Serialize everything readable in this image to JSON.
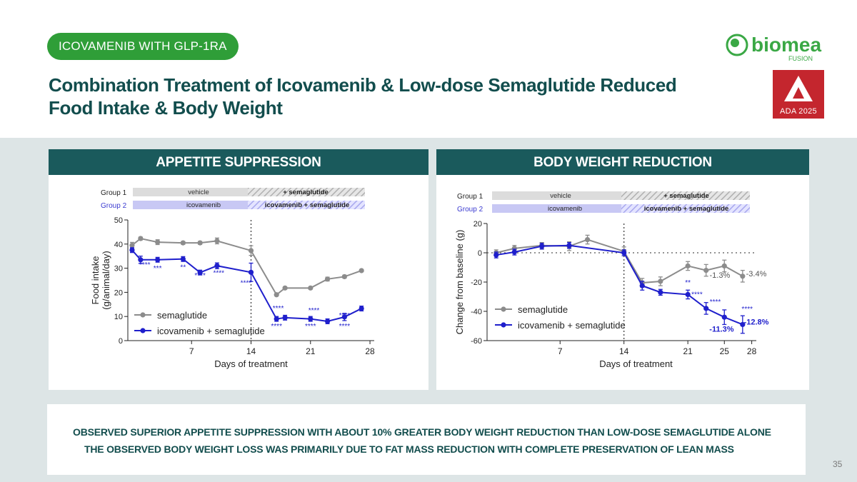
{
  "header": {
    "tag": "ICOVAMENIB WITH GLP-1RA",
    "title_line1": "Combination Treatment of Icovamenib & Low-dose Semaglutide Reduced",
    "title_line2": "Food Intake & Body Weight",
    "logo_word": "biomea",
    "logo_sub": "FUSION",
    "ada_label": "ADA 2025"
  },
  "colors": {
    "gray": "#8c8c8c",
    "blue": "#1f1fcc",
    "teal": "#1a5a5c",
    "green": "#2f9e38"
  },
  "groups": {
    "group1": "Group 1",
    "group2": "Group 2",
    "vehicle": "vehicle",
    "plus_sema": "+ semaglutide",
    "icovamenib": "icovamenib",
    "combo": "icovamenib + semaglutide"
  },
  "left_panel": {
    "heading": "APPETITE SUPPRESSION"
  },
  "right_panel": {
    "heading": "BODY WEIGHT REDUCTION"
  },
  "chart_data": [
    {
      "type": "line",
      "title": "APPETITE SUPPRESSION",
      "xlabel": "Days of treatment",
      "ylabel": "Food intake (g/animal/day)",
      "xlim": [
        -0.5,
        28.5
      ],
      "ylim": [
        0,
        50
      ],
      "xticks": [
        7,
        14,
        21,
        28
      ],
      "yticks": [
        0,
        10,
        20,
        30,
        40,
        50
      ],
      "vline": 14,
      "series": [
        {
          "name": "semaglutide",
          "color": "#8c8c8c",
          "x": [
            0,
            1,
            3,
            6,
            8,
            10,
            14,
            17,
            18,
            21,
            23,
            25,
            27
          ],
          "y": [
            39.5,
            42.3,
            40.8,
            40.5,
            40.5,
            41.3,
            37.3,
            19,
            21.8,
            21.8,
            25.5,
            26.5,
            29
          ],
          "err": [
            1.2,
            0.6,
            1,
            0.6,
            0.6,
            1.2,
            2,
            0.4,
            0.4,
            0.4,
            0.8,
            0.6,
            0.4
          ]
        },
        {
          "name": "icovamenib + semaglutide",
          "color": "#1f1fcc",
          "x": [
            0,
            1,
            3,
            6,
            8,
            10,
            14,
            17,
            18,
            21,
            23,
            25,
            27
          ],
          "y": [
            37.5,
            33.5,
            33.5,
            33.8,
            28.2,
            31,
            28.3,
            9,
            9.5,
            9,
            8,
            9.8,
            13.3
          ],
          "err": [
            1,
            1.5,
            1,
            1,
            1,
            1.2,
            3.8,
            1,
            1,
            1,
            1,
            1.5,
            1
          ]
        }
      ],
      "annotations": [
        {
          "text": "****",
          "x": 1.5,
          "y": 30.5
        },
        {
          "text": "***",
          "x": 3,
          "y": 29
        },
        {
          "text": "**",
          "x": 6,
          "y": 29.5
        },
        {
          "text": "****",
          "x": 8,
          "y": 26
        },
        {
          "text": "****",
          "x": 10.2,
          "y": 27
        },
        {
          "text": "****",
          "x": 13.4,
          "y": 23
        },
        {
          "text": "****",
          "x": 17.2,
          "y": 12.5
        },
        {
          "text": "****",
          "x": 17,
          "y": 5
        },
        {
          "text": "****",
          "x": 21.4,
          "y": 11.5
        },
        {
          "text": "****",
          "x": 21,
          "y": 5
        },
        {
          "text": "****",
          "x": 25,
          "y": 9.5
        },
        {
          "text": "****",
          "x": 25,
          "y": 5
        }
      ],
      "legend": [
        "semaglutide",
        "icovamenib + semaglutide"
      ]
    },
    {
      "type": "line",
      "title": "BODY WEIGHT REDUCTION",
      "xlabel": "Days of treatment",
      "ylabel": "Change from baseline (g)",
      "xlim": [
        -1,
        28.5
      ],
      "ylim": [
        -60,
        20
      ],
      "xticks": [
        7,
        14,
        21,
        25,
        28
      ],
      "yticks": [
        -60,
        -40,
        -20,
        0,
        20
      ],
      "vline": 14,
      "baseline": 0,
      "series": [
        {
          "name": "semaglutide",
          "color": "#8c8c8c",
          "x": [
            0,
            2,
            5,
            8,
            10,
            14,
            16,
            18,
            21,
            23,
            25,
            27
          ],
          "y": [
            0,
            3,
            5,
            4.5,
            9,
            1,
            -20.5,
            -19.5,
            -9,
            -12,
            -9,
            -16
          ],
          "err": [
            2,
            2,
            2,
            3,
            3,
            3,
            3,
            3,
            3,
            4,
            4,
            4
          ]
        },
        {
          "name": "icovamenib + semaglutide",
          "color": "#1f1fcc",
          "x": [
            0,
            2,
            5,
            8,
            14,
            16,
            18,
            21,
            23,
            25,
            27
          ],
          "y": [
            -1.5,
            0.5,
            4.5,
            5,
            0,
            -22.5,
            -27,
            -28.5,
            -38,
            -44,
            -49
          ],
          "err": [
            2,
            2,
            2,
            2,
            2,
            3,
            2,
            3,
            4,
            5,
            6
          ]
        }
      ],
      "annotations": [
        {
          "text": "**",
          "x": 21,
          "y": -22
        },
        {
          "text": "****",
          "x": 22,
          "y": -30
        },
        {
          "text": "****",
          "x": 24,
          "y": -35
        },
        {
          "text": "****",
          "x": 27.5,
          "y": -40
        },
        {
          "text": "-1.3%",
          "x": 24.5,
          "y": -17
        },
        {
          "text": "-3.4%",
          "x": 28.5,
          "y": -16
        },
        {
          "text": "-12.8%",
          "x": 28.5,
          "y": -49
        },
        {
          "text": "-11.3%",
          "x": 24.7,
          "y": -54
        }
      ],
      "legend": [
        "semaglutide",
        "icovamenib + semaglutide"
      ]
    }
  ],
  "conclusions": [
    "OBSERVED SUPERIOR APPETITE SUPPRESSION WITH ABOUT 10% GREATER BODY WEIGHT REDUCTION THAN LOW-DOSE SEMAGLUTIDE ALONE",
    "THE OBSERVED BODY WEIGHT LOSS WAS PRIMARILY DUE TO FAT MASS REDUCTION WITH COMPLETE PRESERVATION OF LEAN MASS"
  ],
  "page_number": "35"
}
